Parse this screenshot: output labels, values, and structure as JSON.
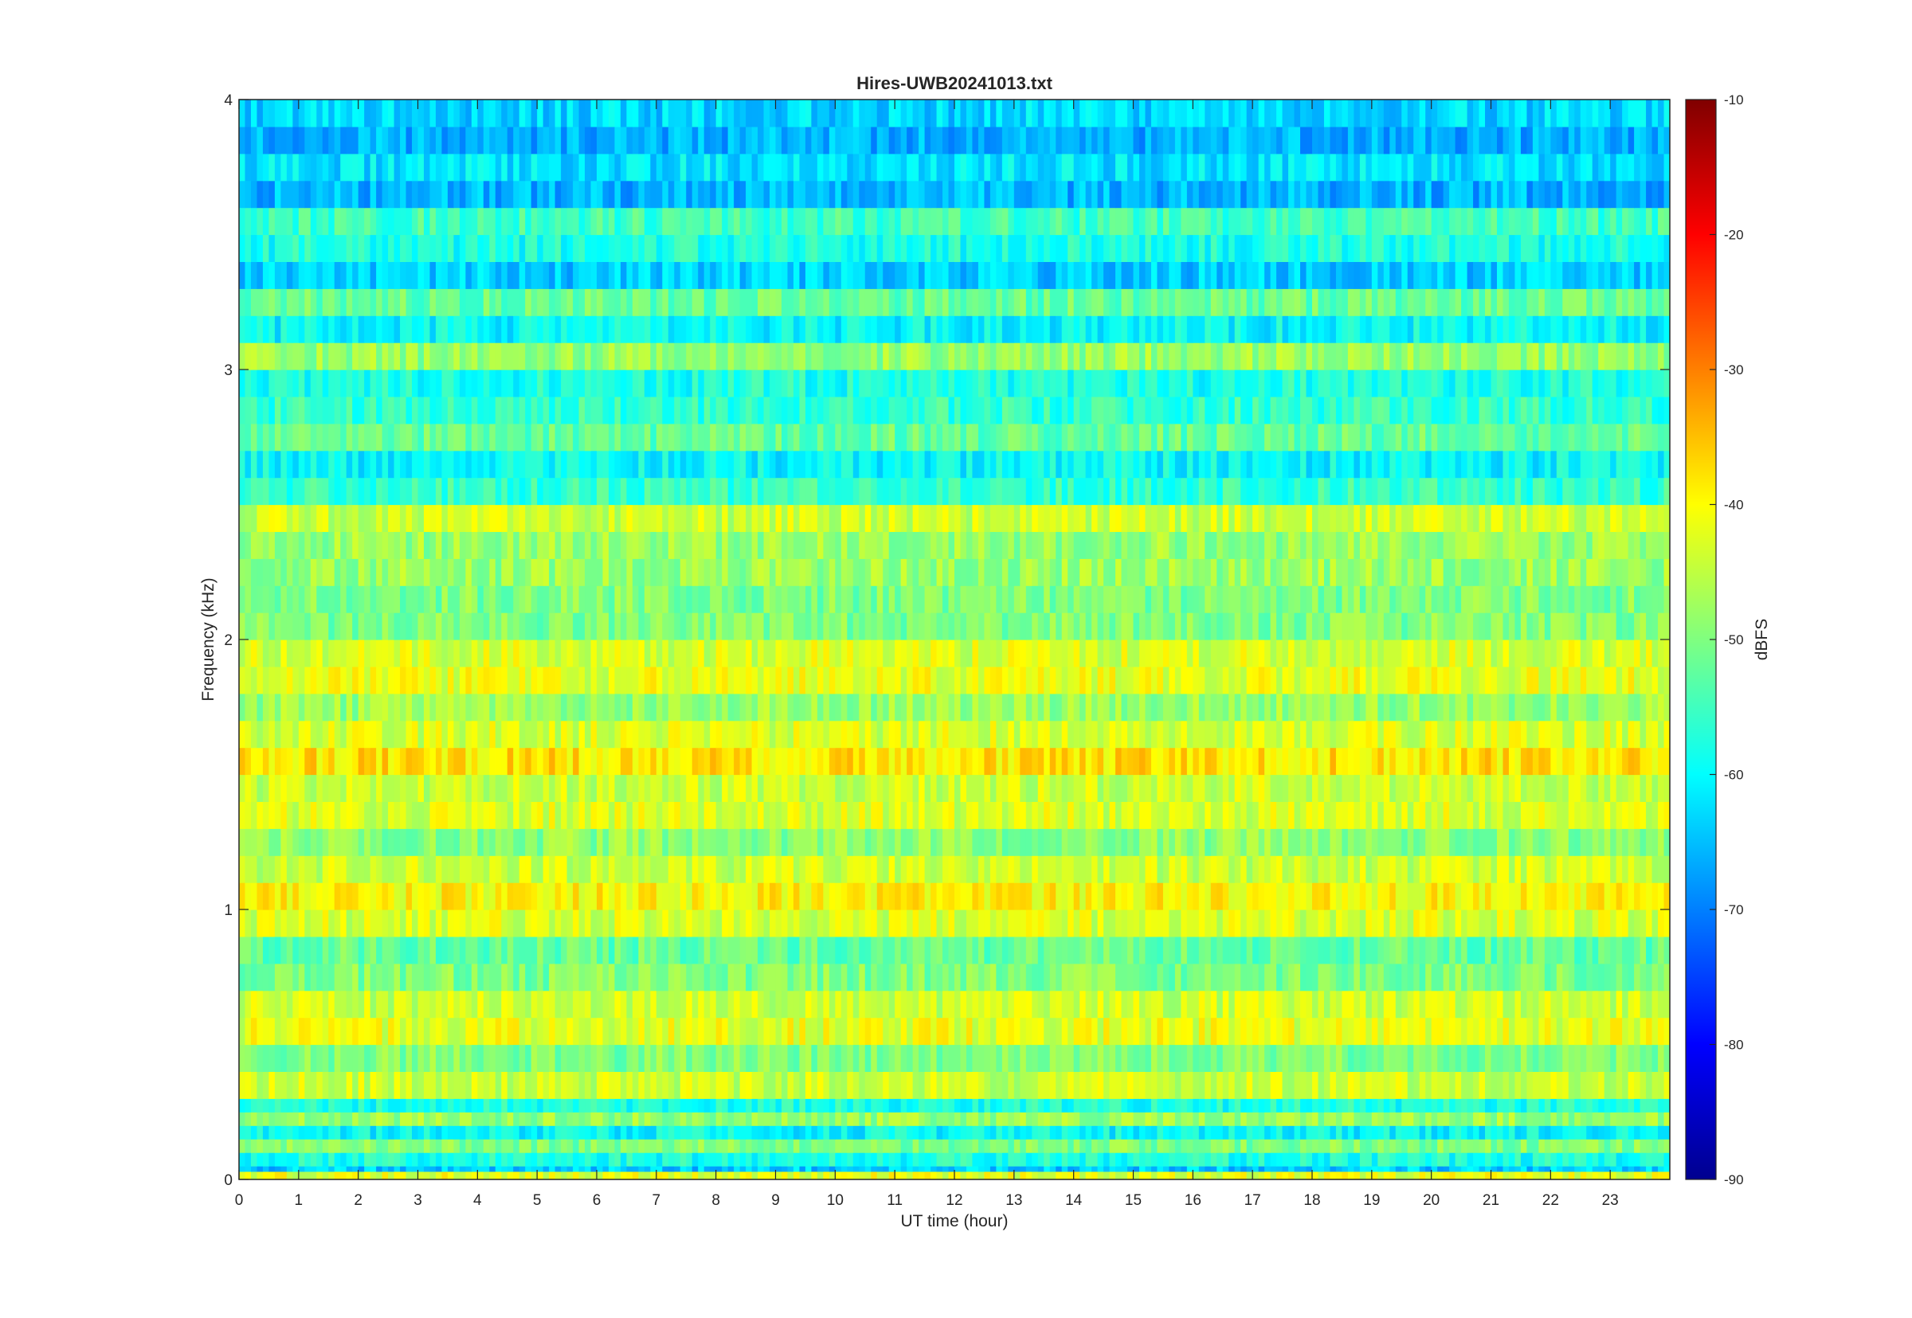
{
  "chart_data": {
    "type": "heatmap",
    "title": "Hires-UWB20241013.txt",
    "xlabel": "UT time (hour)",
    "ylabel": "Frequency (kHz)",
    "colorbar_label": "dBFS",
    "xlim": [
      0,
      24
    ],
    "ylim": [
      0,
      4
    ],
    "clim": [
      -90,
      -10
    ],
    "colormap": "jet",
    "grid": false,
    "x_ticks": [
      0,
      1,
      2,
      3,
      4,
      5,
      6,
      7,
      8,
      9,
      10,
      11,
      12,
      13,
      14,
      15,
      16,
      17,
      18,
      19,
      20,
      21,
      22,
      23
    ],
    "x_tick_labels": [
      "0",
      "1",
      "2",
      "3",
      "4",
      "5",
      "6",
      "7",
      "8",
      "9",
      "10",
      "11",
      "12",
      "13",
      "14",
      "15",
      "16",
      "17",
      "18",
      "19",
      "20",
      "21",
      "22",
      "23"
    ],
    "y_ticks": [
      0,
      1,
      2,
      3,
      4
    ],
    "y_tick_labels": [
      "0",
      "1",
      "2",
      "3",
      "4"
    ],
    "colorbar_ticks": [
      -90,
      -80,
      -70,
      -60,
      -50,
      -40,
      -30,
      -20,
      -10
    ],
    "colorbar_tick_labels": [
      "-90",
      "-80",
      "-70",
      "-60",
      "-50",
      "-40",
      "-30",
      "-20",
      "-10"
    ],
    "bands_khz": [
      {
        "f": 0.03,
        "db": -55
      },
      {
        "f": 0.05,
        "db": -42
      },
      {
        "f": 0.08,
        "db": -64
      },
      {
        "f": 0.1,
        "db": -58
      },
      {
        "f": 0.15,
        "db": -50
      },
      {
        "f": 0.2,
        "db": -60
      },
      {
        "f": 0.25,
        "db": -48
      },
      {
        "f": 0.3,
        "db": -58
      },
      {
        "f": 0.35,
        "db": -44
      },
      {
        "f": 0.45,
        "db": -50
      },
      {
        "f": 0.55,
        "db": -42
      },
      {
        "f": 0.65,
        "db": -44
      },
      {
        "f": 0.75,
        "db": -50
      },
      {
        "f": 0.85,
        "db": -52
      },
      {
        "f": 0.95,
        "db": -43
      },
      {
        "f": 1.05,
        "db": -40
      },
      {
        "f": 1.15,
        "db": -44
      },
      {
        "f": 1.25,
        "db": -49
      },
      {
        "f": 1.35,
        "db": -43
      },
      {
        "f": 1.45,
        "db": -44
      },
      {
        "f": 1.55,
        "db": -38
      },
      {
        "f": 1.65,
        "db": -43
      },
      {
        "f": 1.75,
        "db": -48
      },
      {
        "f": 1.85,
        "db": -42
      },
      {
        "f": 1.95,
        "db": -43
      },
      {
        "f": 2.05,
        "db": -50
      },
      {
        "f": 2.15,
        "db": -50
      },
      {
        "f": 2.25,
        "db": -48
      },
      {
        "f": 2.35,
        "db": -48
      },
      {
        "f": 2.45,
        "db": -44
      },
      {
        "f": 2.55,
        "db": -56
      },
      {
        "f": 2.65,
        "db": -60
      },
      {
        "f": 2.75,
        "db": -52
      },
      {
        "f": 2.85,
        "db": -56
      },
      {
        "f": 2.95,
        "db": -58
      },
      {
        "f": 3.05,
        "db": -48
      },
      {
        "f": 3.15,
        "db": -60
      },
      {
        "f": 3.25,
        "db": -52
      },
      {
        "f": 3.35,
        "db": -64
      },
      {
        "f": 3.45,
        "db": -58
      },
      {
        "f": 3.55,
        "db": -55
      },
      {
        "f": 3.65,
        "db": -66
      },
      {
        "f": 3.75,
        "db": -62
      },
      {
        "f": 3.85,
        "db": -66
      },
      {
        "f": 3.95,
        "db": -63
      }
    ]
  }
}
